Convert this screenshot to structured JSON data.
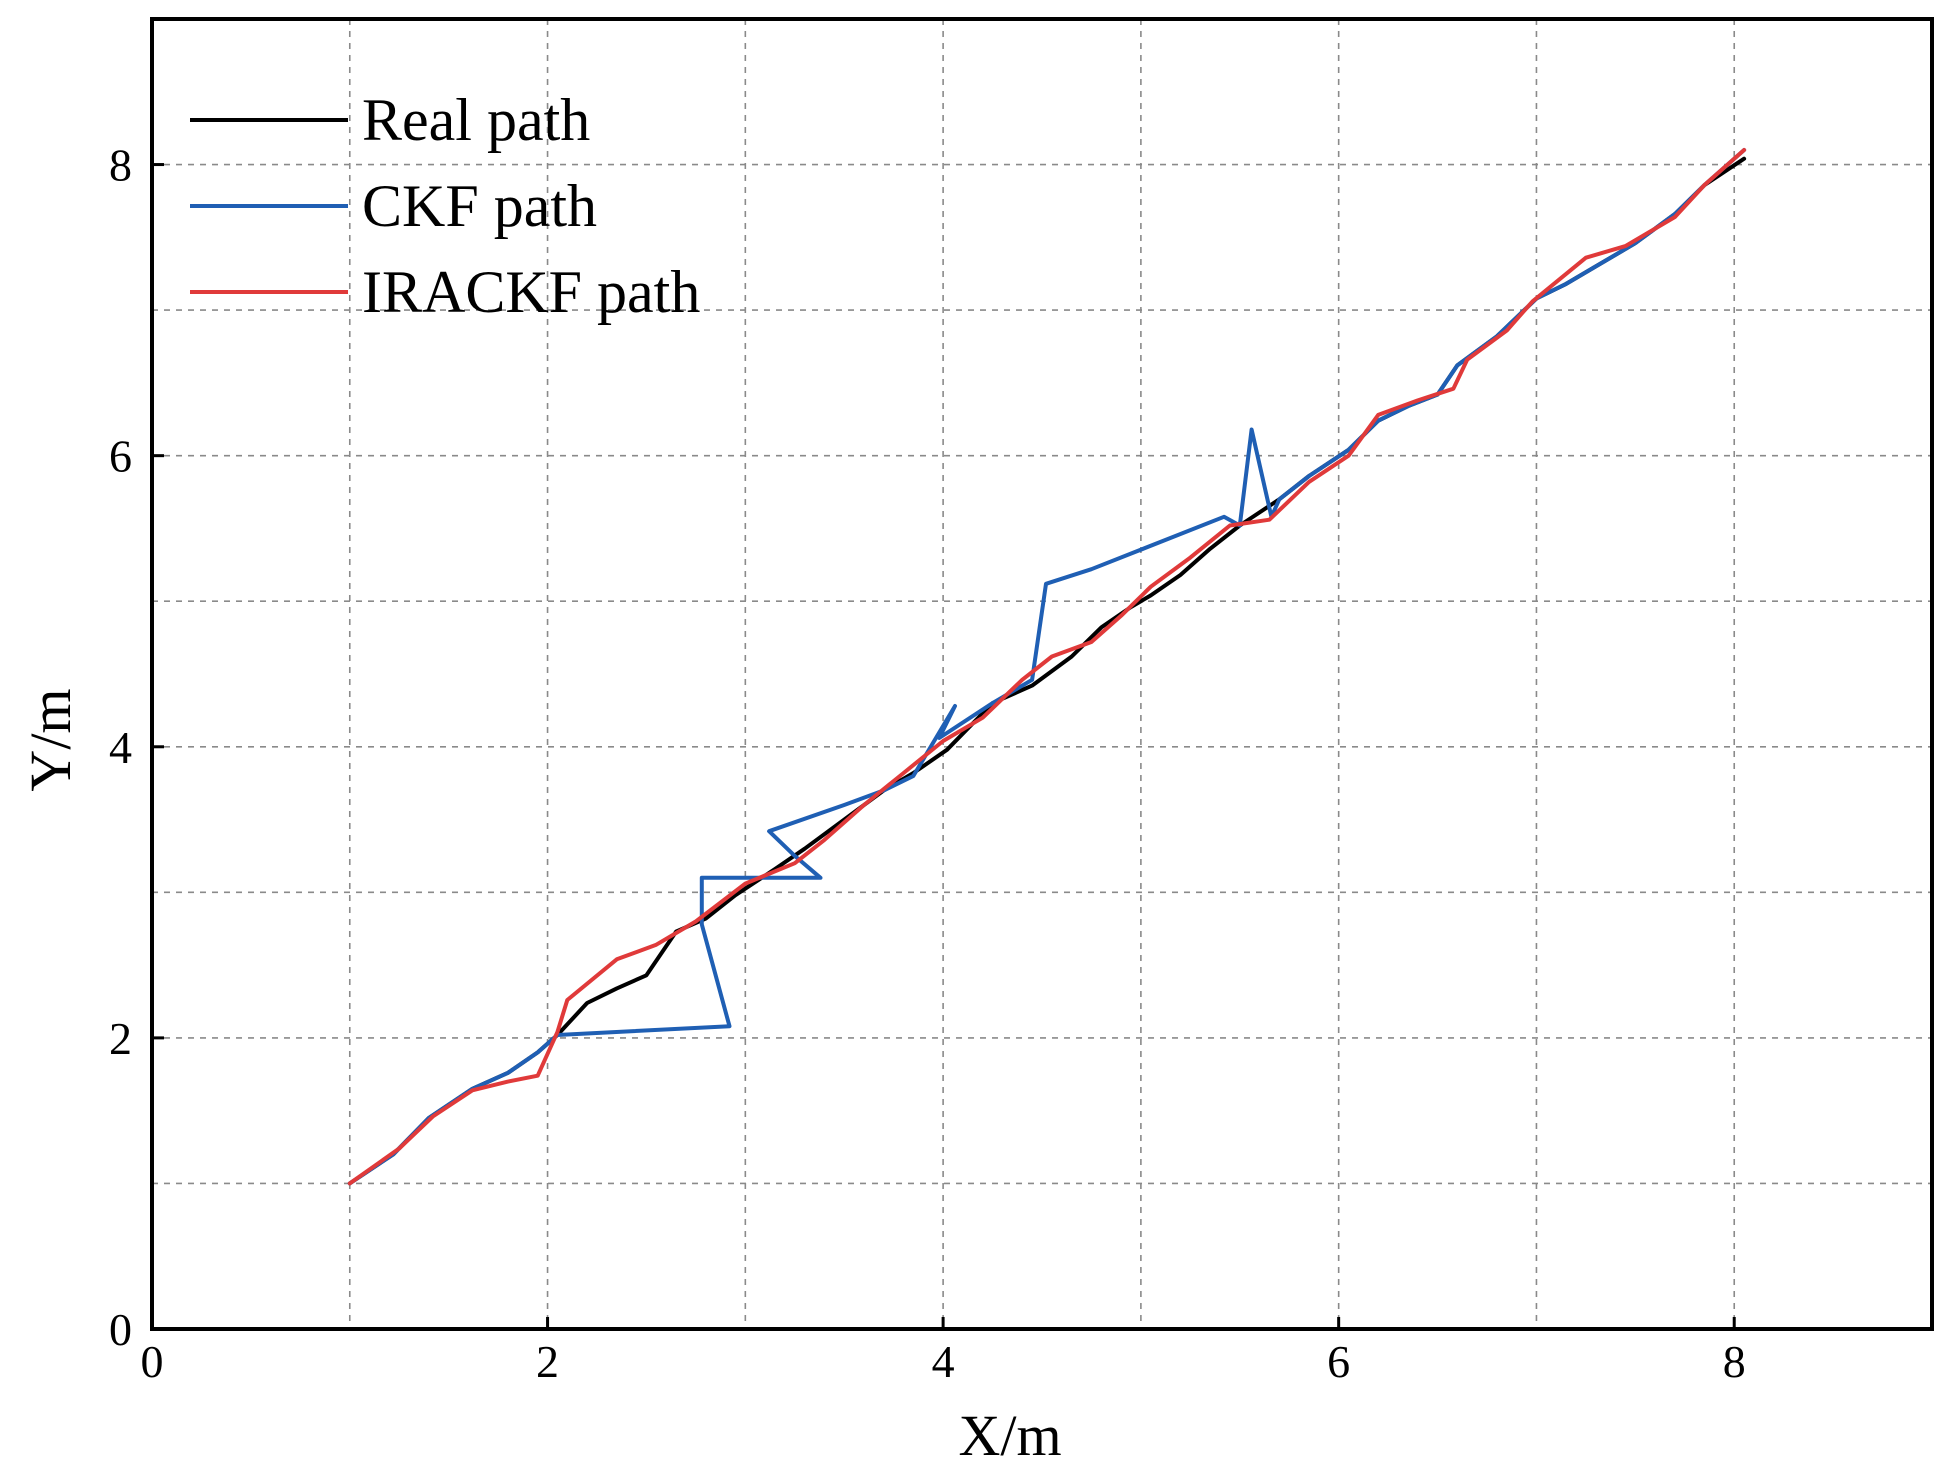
{
  "chart_data": {
    "type": "line",
    "title": "",
    "xlabel": "X/m",
    "ylabel": "Y/m",
    "xlim": [
      0,
      9
    ],
    "ylim": [
      0,
      9
    ],
    "x_ticks": [
      0,
      2,
      4,
      6,
      8
    ],
    "y_ticks": [
      0,
      2,
      4,
      6,
      8
    ],
    "minor_grid_step": 1,
    "grid": true,
    "grid_style": "dashed",
    "legend_position": "top-left",
    "series": [
      {
        "name": "Real path",
        "color": "#000000",
        "points": [
          [
            1.0,
            1.0
          ],
          [
            1.22,
            1.2
          ],
          [
            1.4,
            1.45
          ],
          [
            1.62,
            1.65
          ],
          [
            1.8,
            1.76
          ],
          [
            1.95,
            1.9
          ],
          [
            2.05,
            2.02
          ],
          [
            2.2,
            2.24
          ],
          [
            2.35,
            2.34
          ],
          [
            2.5,
            2.43
          ],
          [
            2.65,
            2.73
          ],
          [
            2.8,
            2.82
          ],
          [
            2.95,
            2.98
          ],
          [
            3.15,
            3.16
          ],
          [
            3.3,
            3.3
          ],
          [
            3.5,
            3.5
          ],
          [
            3.7,
            3.7
          ],
          [
            3.85,
            3.82
          ],
          [
            4.02,
            3.98
          ],
          [
            4.25,
            4.3
          ],
          [
            4.45,
            4.42
          ],
          [
            4.65,
            4.62
          ],
          [
            4.8,
            4.82
          ],
          [
            4.95,
            4.96
          ],
          [
            5.05,
            5.04
          ],
          [
            5.2,
            5.18
          ],
          [
            5.35,
            5.36
          ],
          [
            5.5,
            5.52
          ],
          [
            5.7,
            5.7
          ],
          [
            5.85,
            5.86
          ],
          [
            6.05,
            6.04
          ],
          [
            6.2,
            6.24
          ],
          [
            6.35,
            6.34
          ],
          [
            6.5,
            6.42
          ],
          [
            6.6,
            6.62
          ],
          [
            6.8,
            6.82
          ],
          [
            7.0,
            7.08
          ],
          [
            7.15,
            7.18
          ],
          [
            7.3,
            7.3
          ],
          [
            7.5,
            7.46
          ],
          [
            7.7,
            7.66
          ],
          [
            7.85,
            7.86
          ],
          [
            8.05,
            8.04
          ]
        ]
      },
      {
        "name": "CKF path",
        "color": "#1f5fb4",
        "points": [
          [
            1.0,
            1.0
          ],
          [
            1.22,
            1.2
          ],
          [
            1.4,
            1.45
          ],
          [
            1.62,
            1.65
          ],
          [
            1.8,
            1.76
          ],
          [
            1.95,
            1.9
          ],
          [
            2.05,
            2.02
          ],
          [
            2.92,
            2.08
          ],
          [
            2.78,
            2.78
          ],
          [
            2.78,
            3.1
          ],
          [
            3.38,
            3.1
          ],
          [
            3.25,
            3.25
          ],
          [
            3.12,
            3.42
          ],
          [
            3.5,
            3.6
          ],
          [
            3.7,
            3.7
          ],
          [
            3.85,
            3.8
          ],
          [
            4.06,
            4.28
          ],
          [
            3.98,
            4.06
          ],
          [
            4.25,
            4.3
          ],
          [
            4.45,
            4.46
          ],
          [
            4.52,
            5.12
          ],
          [
            4.75,
            5.22
          ],
          [
            5.42,
            5.58
          ],
          [
            5.5,
            5.52
          ],
          [
            5.56,
            6.18
          ],
          [
            5.66,
            5.58
          ],
          [
            5.7,
            5.7
          ],
          [
            5.85,
            5.86
          ],
          [
            6.05,
            6.04
          ],
          [
            6.2,
            6.24
          ],
          [
            6.35,
            6.34
          ],
          [
            6.5,
            6.42
          ],
          [
            6.6,
            6.62
          ],
          [
            6.8,
            6.82
          ],
          [
            7.0,
            7.08
          ],
          [
            7.15,
            7.18
          ],
          [
            7.3,
            7.3
          ],
          [
            7.5,
            7.46
          ],
          [
            7.7,
            7.66
          ],
          [
            7.85,
            7.86
          ],
          [
            8.05,
            8.1
          ]
        ]
      },
      {
        "name": "IRACKF path",
        "color": "#e03a3a",
        "points": [
          [
            1.0,
            1.0
          ],
          [
            1.25,
            1.24
          ],
          [
            1.42,
            1.46
          ],
          [
            1.62,
            1.64
          ],
          [
            1.8,
            1.7
          ],
          [
            1.95,
            1.74
          ],
          [
            2.05,
            2.04
          ],
          [
            2.1,
            2.26
          ],
          [
            2.35,
            2.54
          ],
          [
            2.55,
            2.64
          ],
          [
            2.75,
            2.8
          ],
          [
            3.0,
            3.06
          ],
          [
            3.25,
            3.2
          ],
          [
            3.4,
            3.36
          ],
          [
            3.6,
            3.6
          ],
          [
            3.8,
            3.82
          ],
          [
            4.0,
            4.04
          ],
          [
            4.2,
            4.2
          ],
          [
            4.4,
            4.46
          ],
          [
            4.55,
            4.62
          ],
          [
            4.75,
            4.72
          ],
          [
            4.9,
            4.9
          ],
          [
            5.05,
            5.1
          ],
          [
            5.25,
            5.3
          ],
          [
            5.45,
            5.52
          ],
          [
            5.65,
            5.56
          ],
          [
            5.85,
            5.82
          ],
          [
            6.05,
            6.0
          ],
          [
            6.2,
            6.28
          ],
          [
            6.4,
            6.38
          ],
          [
            6.58,
            6.46
          ],
          [
            6.65,
            6.66
          ],
          [
            6.85,
            6.86
          ],
          [
            6.98,
            7.06
          ],
          [
            7.25,
            7.36
          ],
          [
            7.45,
            7.44
          ],
          [
            7.7,
            7.64
          ],
          [
            7.85,
            7.86
          ],
          [
            8.05,
            8.1
          ]
        ]
      }
    ]
  }
}
